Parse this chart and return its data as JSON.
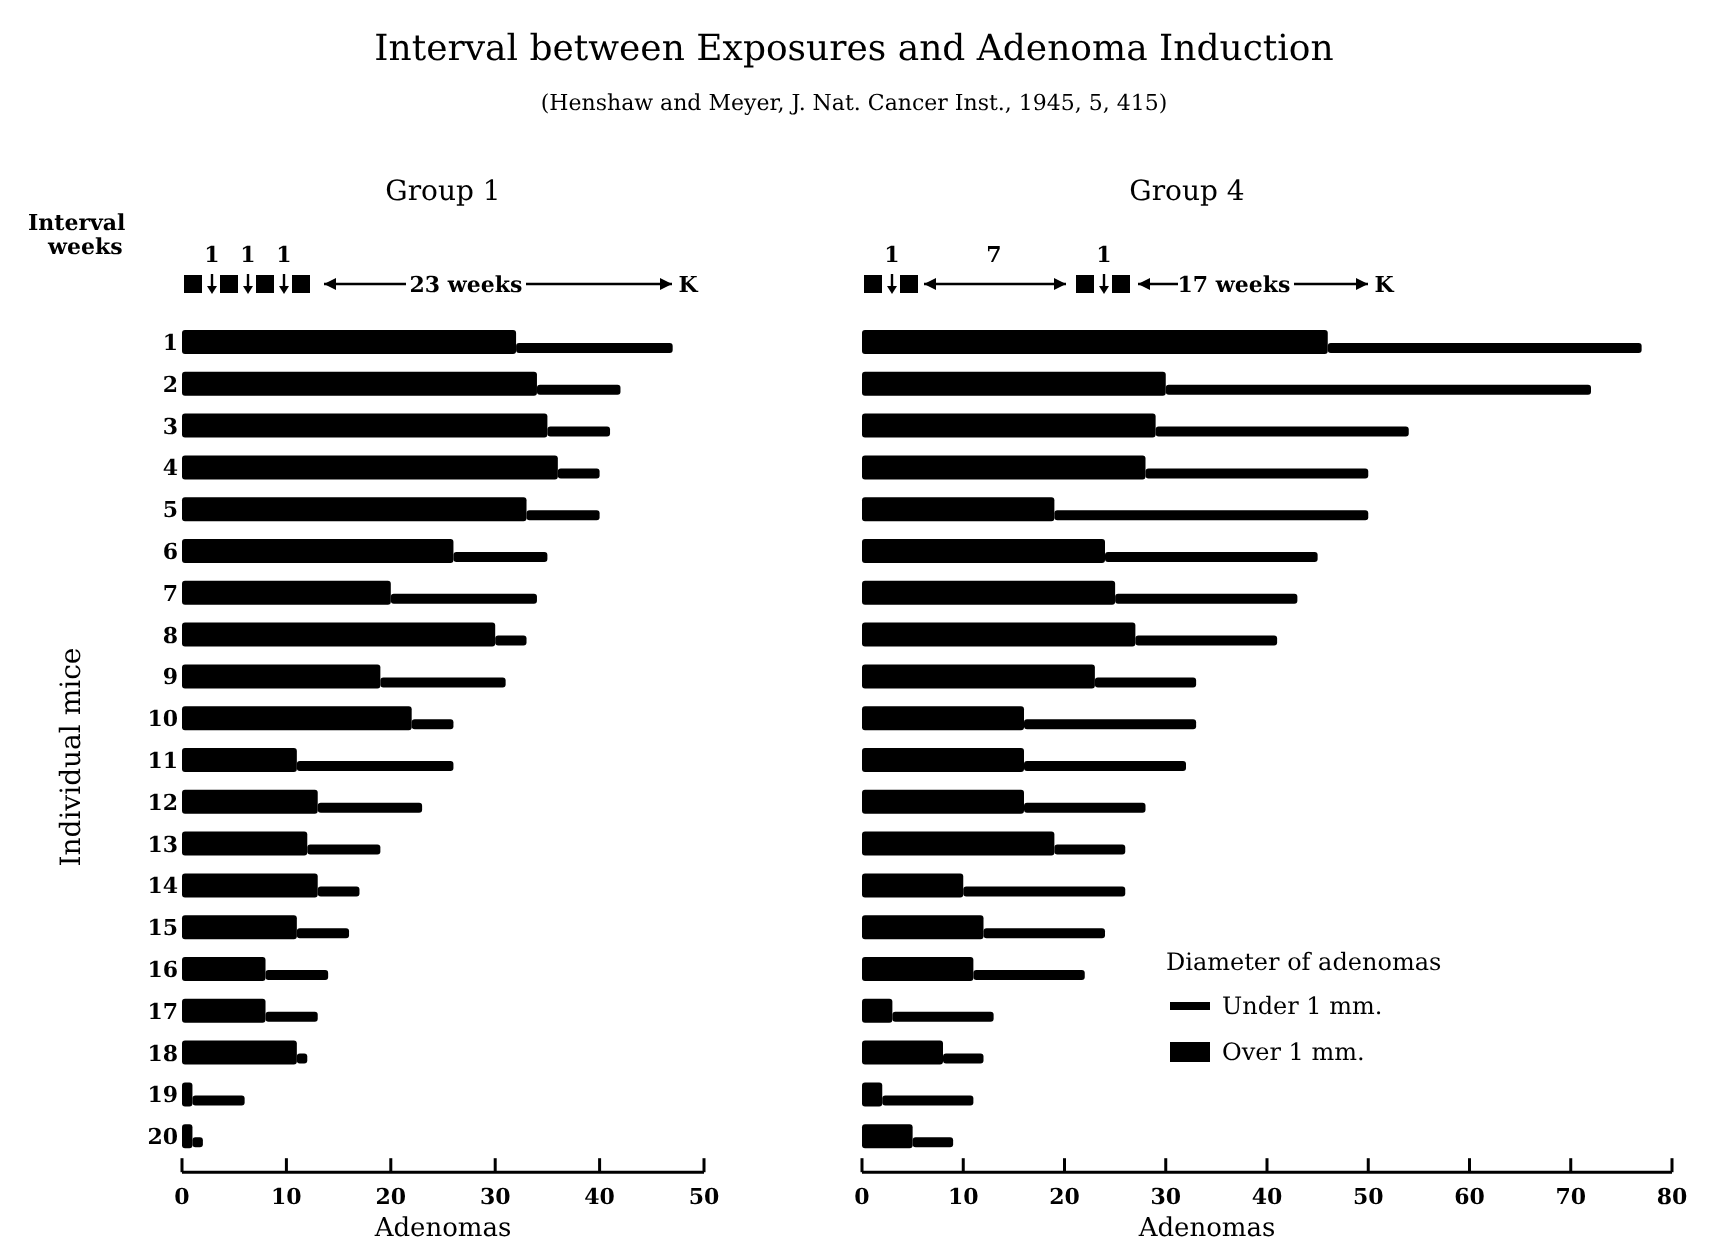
{
  "chart_data": [
    {
      "type": "bar",
      "orientation": "horizontal",
      "stacked": true,
      "title": "Group 1",
      "xlabel": "Adenomas",
      "ylabel": "Individual mice",
      "categories": [
        "1",
        "2",
        "3",
        "4",
        "5",
        "6",
        "7",
        "8",
        "9",
        "10",
        "11",
        "12",
        "13",
        "14",
        "15",
        "16",
        "17",
        "18",
        "19",
        "20"
      ],
      "series": [
        {
          "color": "#000000",
          "values": [
            32,
            34,
            35,
            36,
            33,
            26,
            20,
            30,
            19,
            22,
            11,
            13,
            12,
            13,
            11,
            8,
            8,
            11,
            1,
            1
          ]
        },
        {
          "color": "#000000",
          "values": [
            15,
            8,
            6,
            4,
            7,
            9,
            14,
            3,
            12,
            4,
            15,
            10,
            7,
            4,
            5,
            6,
            5,
            1,
            5,
            1
          ]
        }
      ],
      "xlim": [
        0,
        50
      ],
      "xticks": [
        0,
        10,
        20,
        30,
        40,
        50
      ],
      "grid": false,
      "legend": false,
      "annotations": [
        "Interval between Exposures and Adenoma Induction",
        "(Henshaw and Meyer, J. Nat. Cancer Inst., 1945, 5, 415)",
        "Interval weeks",
        "1 1 1",
        "23 weeks",
        "K"
      ]
    },
    {
      "type": "bar",
      "orientation": "horizontal",
      "stacked": true,
      "title": "Group 4",
      "xlabel": "Adenomas",
      "legend_title": "Diameter of adenomas",
      "legend": "bottom right",
      "categories": [
        null,
        null,
        null,
        null,
        null,
        null,
        null,
        null,
        null,
        null,
        null,
        null,
        null,
        null,
        null,
        null,
        null,
        null,
        null,
        null
      ],
      "series": [
        {
          "name": "Over 1 mm.",
          "color": "#000000",
          "values": [
            46,
            30,
            29,
            28,
            19,
            24,
            25,
            27,
            23,
            16,
            16,
            16,
            19,
            10,
            12,
            11,
            3,
            8,
            2,
            5
          ]
        },
        {
          "name": "Under 1 mm.",
          "color": "#000000",
          "values": [
            31,
            42,
            25,
            22,
            31,
            21,
            18,
            14,
            10,
            17,
            16,
            12,
            7,
            16,
            12,
            11,
            10,
            4,
            9,
            4
          ]
        }
      ],
      "xlim": [
        0,
        80
      ],
      "xticks": [
        0,
        10,
        20,
        30,
        40,
        50,
        60,
        70,
        80
      ],
      "grid": false,
      "annotations": [
        "1 7 1",
        "17 weeks",
        "K"
      ]
    }
  ]
}
